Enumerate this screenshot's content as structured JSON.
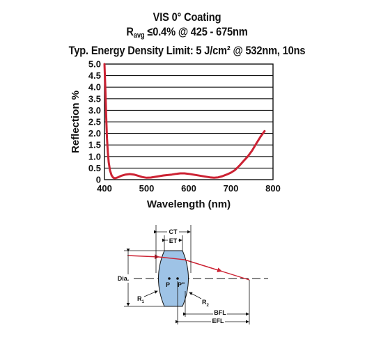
{
  "title": {
    "line1": "VIS 0° Coating",
    "line2_main": "R",
    "line2_sub": "avg",
    "line2_rest": " ≤0.4% @ 425 - 675nm",
    "line3": "Typ. Energy Density Limit: 5 J/cm² @ 532nm, 10ns"
  },
  "colors": {
    "curve": "#cc2233",
    "lens_fill": "#9ec3e6",
    "ray": "#cc2233"
  },
  "chart_data": {
    "type": "line",
    "xlabel": "Wavelength (nm)",
    "ylabel": "Reflection %",
    "xlim": [
      400,
      800
    ],
    "ylim": [
      0,
      5.0
    ],
    "xticks": [
      400,
      500,
      600,
      700,
      800
    ],
    "yticks": [
      "0",
      "0.5",
      "1.0",
      "1.5",
      "2.0",
      "2.5",
      "3.0",
      "3.5",
      "4.0",
      "4.5",
      "5.0"
    ],
    "grid": "horizontal",
    "series": [
      {
        "x": [
          400,
          402,
          404,
          406,
          408,
          410,
          413,
          417,
          421,
          425,
          432,
          440,
          450,
          460,
          470,
          480,
          490,
          500,
          510,
          520,
          530,
          540,
          550,
          560,
          570,
          580,
          590,
          600,
          610,
          620,
          630,
          640,
          650,
          660,
          670,
          680,
          690,
          700,
          710,
          720,
          730,
          740,
          750,
          760,
          770,
          780
        ],
        "y": [
          5.0,
          4.0,
          2.8,
          1.8,
          1.2,
          0.75,
          0.4,
          0.18,
          0.08,
          0.06,
          0.1,
          0.17,
          0.22,
          0.24,
          0.22,
          0.17,
          0.11,
          0.08,
          0.09,
          0.12,
          0.15,
          0.18,
          0.2,
          0.22,
          0.25,
          0.27,
          0.27,
          0.25,
          0.22,
          0.19,
          0.16,
          0.13,
          0.1,
          0.08,
          0.1,
          0.15,
          0.22,
          0.3,
          0.42,
          0.6,
          0.8,
          1.0,
          1.25,
          1.55,
          1.85,
          2.1
        ]
      }
    ]
  },
  "diagram": {
    "ct_label": "CT",
    "et_label": "ET",
    "dia_label": "Dia.",
    "p_label": "P",
    "pprime_label": "P\"",
    "r1_main": "R",
    "r1_sub": "1",
    "r2_main": "R",
    "r2_sub": "2",
    "bfl_label": "BFL",
    "efl_label": "EFL"
  }
}
